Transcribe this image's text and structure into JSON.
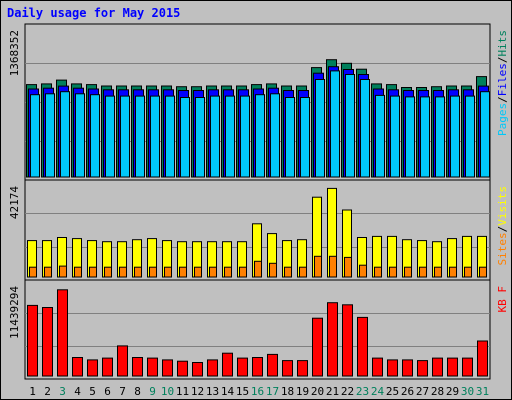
{
  "chart_data": {
    "type": "bar",
    "title": "Daily usage for May 2015",
    "categories": [
      "1",
      "2",
      "3",
      "4",
      "5",
      "6",
      "7",
      "8",
      "9",
      "10",
      "11",
      "12",
      "13",
      "14",
      "15",
      "16",
      "17",
      "18",
      "19",
      "20",
      "21",
      "22",
      "23",
      "24",
      "25",
      "26",
      "27",
      "28",
      "29",
      "30",
      "31"
    ],
    "weekend_days": [
      "3",
      "9",
      "10",
      "16",
      "17",
      "23",
      "24",
      "30",
      "31"
    ],
    "colors": {
      "background": "#c0c0c0",
      "hits": "#00805c",
      "files": "#0000ff",
      "pages": "#00c8f8",
      "visits": "#ffff00",
      "sites": "#ff8000",
      "kbytes": "#ff0000",
      "title": "#0000ff",
      "weekday_label": "#000000",
      "weekend_label": "#00805c"
    },
    "panels": [
      {
        "id": "hits-files-pages",
        "ymax_label": "1368352",
        "ymax": 1368352,
        "legend": [
          {
            "text": "Pages",
            "color": "#00c8f8"
          },
          {
            "text": "/",
            "color": "#000000"
          },
          {
            "text": "Files",
            "color": "#0000ff"
          },
          {
            "text": "/",
            "color": "#000000"
          },
          {
            "text": "Hits",
            "color": "#00805c"
          }
        ],
        "series": [
          {
            "name": "Hits",
            "color": "#00805c",
            "values": [
              872000,
              879000,
              914000,
              879000,
              872000,
              859000,
              859000,
              859000,
              859000,
              859000,
              852000,
              852000,
              859000,
              859000,
              859000,
              872000,
              879000,
              859000,
              859000,
              1032000,
              1107000,
              1073000,
              1017000,
              879000,
              872000,
              845000,
              845000,
              852000,
              859000,
              859000,
              947000
            ]
          },
          {
            "name": "Files",
            "color": "#0000ff",
            "values": [
              830000,
              838000,
              858000,
              838000,
              830000,
              823000,
              823000,
              823000,
              823000,
              823000,
              816000,
              816000,
              823000,
              823000,
              823000,
              830000,
              838000,
              816000,
              816000,
              980000,
              1041000,
              1014000,
              967000,
              830000,
              823000,
              816000,
              816000,
              816000,
              823000,
              823000,
              858000
            ]
          },
          {
            "name": "Pages",
            "color": "#00c8f8",
            "values": [
              777000,
              785000,
              805000,
              785000,
              777000,
              763000,
              763000,
              763000,
              763000,
              763000,
              750000,
              750000,
              763000,
              763000,
              763000,
              777000,
              785000,
              750000,
              750000,
              920000,
              1001000,
              967000,
              920000,
              770000,
              763000,
              756000,
              756000,
              756000,
              763000,
              763000,
              805000
            ]
          }
        ]
      },
      {
        "id": "visits-sites",
        "ymax_label": "42174",
        "ymax": 42174,
        "legend": [
          {
            "text": "Sites",
            "color": "#ff8000"
          },
          {
            "text": "/",
            "color": "#000000"
          },
          {
            "text": "Visits",
            "color": "#ffff00"
          }
        ],
        "series": [
          {
            "name": "Visits",
            "color": "#ffff00",
            "values": [
              16700,
              16700,
              18100,
              17600,
              16700,
              16200,
              16200,
              17100,
              17600,
              16700,
              16200,
              16200,
              16200,
              16200,
              16200,
              24400,
              19900,
              16700,
              17100,
              36600,
              40600,
              30700,
              18100,
              18600,
              18600,
              17100,
              16700,
              16200,
              17600,
              18600,
              18600
            ]
          },
          {
            "name": "Sites",
            "color": "#ff8000",
            "values": [
              4500,
              4500,
              5000,
              4500,
              4500,
              4500,
              4500,
              4500,
              4500,
              4500,
              4500,
              4500,
              4500,
              4500,
              4500,
              7200,
              6300,
              4500,
              4500,
              9500,
              9500,
              9000,
              5400,
              4500,
              4500,
              4500,
              4500,
              4500,
              4500,
              4500,
              4500
            ]
          }
        ]
      },
      {
        "id": "kbytes",
        "ymax_label": "11439294",
        "ymax": 11439294,
        "legend": [
          {
            "text": "KB F",
            "color": "#ff0000"
          }
        ],
        "series": [
          {
            "name": "KB F",
            "color": "#ff0000",
            "values": [
              8880000,
              8610000,
              10830000,
              2330000,
              2020000,
              2250000,
              3790000,
              2330000,
              2250000,
              2020000,
              1860000,
              1700000,
              2020000,
              2870000,
              2250000,
              2330000,
              2710000,
              1940000,
              1940000,
              7270000,
              9220000,
              8950000,
              7370000,
              2250000,
              2020000,
              2020000,
              1940000,
              2250000,
              2250000,
              2250000,
              4400000
            ]
          }
        ]
      }
    ]
  }
}
